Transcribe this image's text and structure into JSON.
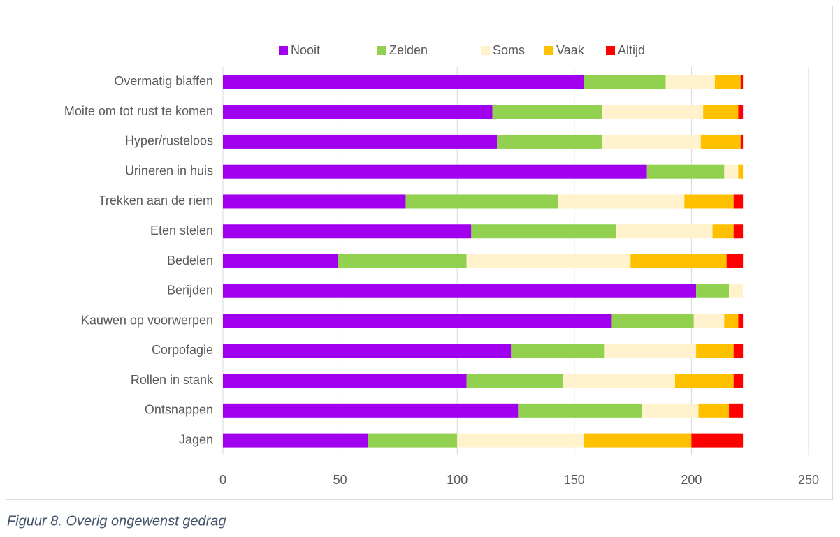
{
  "chart_data": {
    "type": "stacked_barh",
    "caption": "Figuur 8. Overig ongewenst gedrag",
    "categories": [
      "Overmatig blaffen",
      "Moite om tot rust te komen",
      "Hyper/rusteloos",
      "Urineren in huis",
      "Trekken aan de riem",
      "Eten stelen",
      "Bedelen",
      "Berijden",
      "Kauwen op voorwerpen",
      "Corpofagie",
      "Rollen in stank",
      "Ontsnappen",
      "Jagen"
    ],
    "series": [
      {
        "name": "Nooit",
        "color": "#a100ee",
        "values": [
          154,
          115,
          117,
          181,
          78,
          106,
          49,
          202,
          166,
          123,
          104,
          126,
          62
        ]
      },
      {
        "name": "Zelden",
        "color": "#92d050",
        "values": [
          35,
          47,
          45,
          33,
          65,
          62,
          55,
          14,
          35,
          40,
          41,
          53,
          38
        ]
      },
      {
        "name": "Soms",
        "color": "#fff2cc",
        "values": [
          21,
          43,
          42,
          6,
          54,
          41,
          70,
          6,
          13,
          39,
          48,
          24,
          54
        ]
      },
      {
        "name": "Vaak",
        "color": "#ffc000",
        "values": [
          11,
          15,
          17,
          2,
          21,
          9,
          41,
          0,
          6,
          16,
          25,
          13,
          46
        ]
      },
      {
        "name": "Altijd",
        "color": "#ff0000",
        "values": [
          1,
          2,
          1,
          0,
          4,
          4,
          7,
          0,
          2,
          4,
          4,
          6,
          22
        ]
      }
    ],
    "xlim": [
      0,
      250
    ],
    "xticks": [
      0,
      50,
      100,
      150,
      200,
      250
    ],
    "grid": true,
    "legend": "top"
  }
}
